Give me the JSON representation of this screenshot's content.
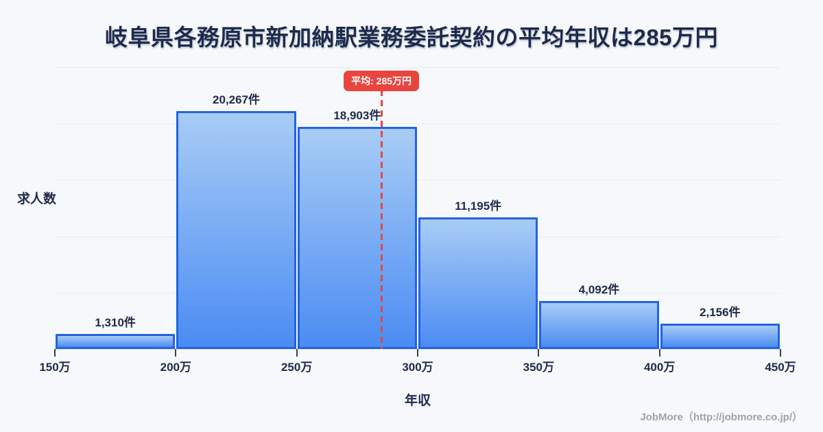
{
  "title": "岐阜県各務原市新加納駅業務委託契約の平均年収は285万円",
  "chart_data": {
    "type": "bar",
    "title": "岐阜県各務原市新加納駅業務委託契約の平均年収は285万円",
    "xlabel": "年収",
    "ylabel": "求人数",
    "categories": [
      "150万-200万",
      "200万-250万",
      "250万-300万",
      "300万-350万",
      "350万-400万",
      "400万-450万"
    ],
    "values": [
      1310,
      20267,
      18903,
      11195,
      4092,
      2156
    ],
    "bar_labels": [
      "1,310件",
      "20,267件",
      "18,903件",
      "11,195件",
      "4,092件",
      "2,156件"
    ],
    "x_tick_values": [
      150,
      200,
      250,
      300,
      350,
      400,
      450
    ],
    "x_tick_labels": [
      "150万",
      "200万",
      "250万",
      "300万",
      "350万",
      "400万",
      "450万"
    ],
    "xlim": [
      150,
      450
    ],
    "ylim": [
      0,
      24000
    ],
    "grid": "horizontal",
    "gridline_count": 5,
    "legend": "none",
    "average_line": {
      "x_value": 285,
      "label": "平均: 285万円",
      "style": "dashed"
    }
  },
  "footer": {
    "credit": "JobMore（http://jobmore.co.jp/）"
  },
  "colors": {
    "background": "#f7f8fb",
    "title_text": "#1d2a4a",
    "bar_fill_top": "#a8ccf5",
    "bar_fill_bottom": "#4b8cf3",
    "bar_border": "#2263e0",
    "gridline": "#e7eaf2",
    "average_accent": "#e8453f",
    "badge_text": "#ffffff",
    "tick_text": "#1d2a4a",
    "footer_text": "#9da3ac"
  }
}
